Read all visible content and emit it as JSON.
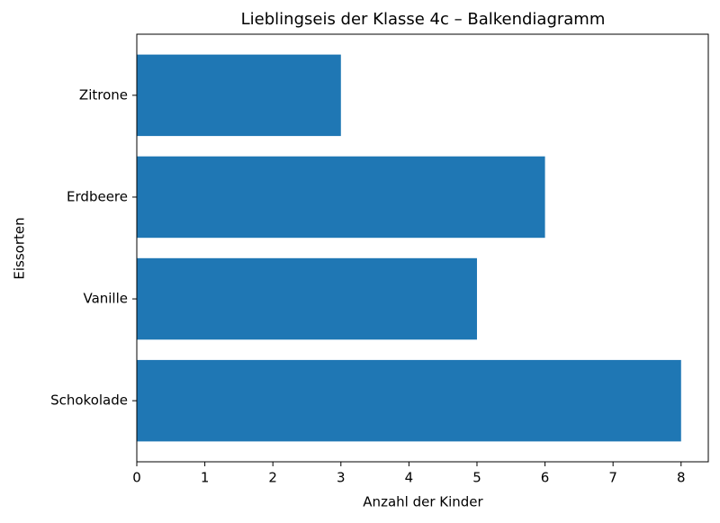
{
  "chart_data": {
    "type": "barh",
    "title": "Lieblingseis der Klasse 4c – Balkendiagramm",
    "xlabel": "Anzahl der Kinder",
    "ylabel": "Eissorten",
    "categories": [
      "Schokolade",
      "Vanille",
      "Erdbeere",
      "Zitrone"
    ],
    "values": [
      8,
      5,
      6,
      3
    ],
    "color": "#1f77b4",
    "xlim": [
      0,
      8.4
    ],
    "xticks": [
      0,
      1,
      2,
      3,
      4,
      5,
      6,
      7,
      8
    ],
    "grid": false
  }
}
